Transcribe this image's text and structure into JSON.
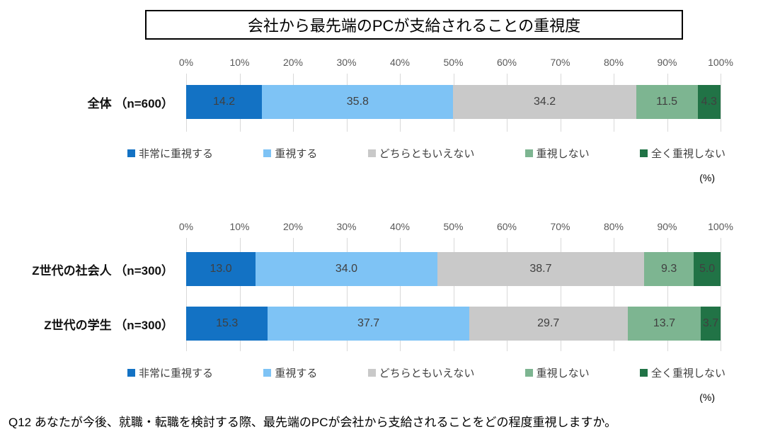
{
  "title": "会社から最先端のPCが支給されることの重視度",
  "percent_note": "(%)",
  "footnote": "Q12 あなたが今後、就職・転職を検討する際、最先端のPCが会社から支給されることをどの程度重視しますか。",
  "colors": {
    "very_important": "#1372C4",
    "important": "#7EC3F5",
    "neutral": "#C9C9C9",
    "not_important": "#7DB591",
    "not_important_at_all": "#217346",
    "gridline": "#D9D9D9",
    "axis_text": "#595959",
    "data_label": "#404040"
  },
  "chart_data": [
    {
      "type": "bar",
      "stacked": true,
      "orientation": "horizontal",
      "categories": [
        "全体 （n=600）"
      ],
      "series": [
        {
          "name": "非常に重視する",
          "color": "#1372C4",
          "values": [
            14.2
          ]
        },
        {
          "name": "重視する",
          "color": "#7EC3F5",
          "values": [
            35.8
          ]
        },
        {
          "name": "どちらともいえない",
          "color": "#C9C9C9",
          "values": [
            34.2
          ]
        },
        {
          "name": "重視しない",
          "color": "#7DB591",
          "values": [
            11.5
          ]
        },
        {
          "name": "全く重視しない",
          "color": "#217346",
          "values": [
            4.3
          ]
        }
      ],
      "xlim": [
        0,
        100
      ],
      "x_ticks": [
        "0%",
        "10%",
        "20%",
        "30%",
        "40%",
        "50%",
        "60%",
        "70%",
        "80%",
        "90%",
        "100%"
      ],
      "legend_position": "bottom",
      "grid": true,
      "unit_note": "(%)"
    },
    {
      "type": "bar",
      "stacked": true,
      "orientation": "horizontal",
      "categories": [
        "Z世代の社会人 （n=300）",
        "Z世代の学生 （n=300）"
      ],
      "series": [
        {
          "name": "非常に重視する",
          "color": "#1372C4",
          "values": [
            13.0,
            15.3
          ]
        },
        {
          "name": "重視する",
          "color": "#7EC3F5",
          "values": [
            34.0,
            37.7
          ]
        },
        {
          "name": "どちらともいえない",
          "color": "#C9C9C9",
          "values": [
            38.7,
            29.7
          ]
        },
        {
          "name": "重視しない",
          "color": "#7DB591",
          "values": [
            9.3,
            13.7
          ]
        },
        {
          "name": "全く重視しない",
          "color": "#217346",
          "values": [
            5.0,
            3.7
          ]
        }
      ],
      "xlim": [
        0,
        100
      ],
      "x_ticks": [
        "0%",
        "10%",
        "20%",
        "30%",
        "40%",
        "50%",
        "60%",
        "70%",
        "80%",
        "90%",
        "100%"
      ],
      "legend_position": "bottom",
      "grid": true,
      "unit_note": "(%)"
    }
  ]
}
